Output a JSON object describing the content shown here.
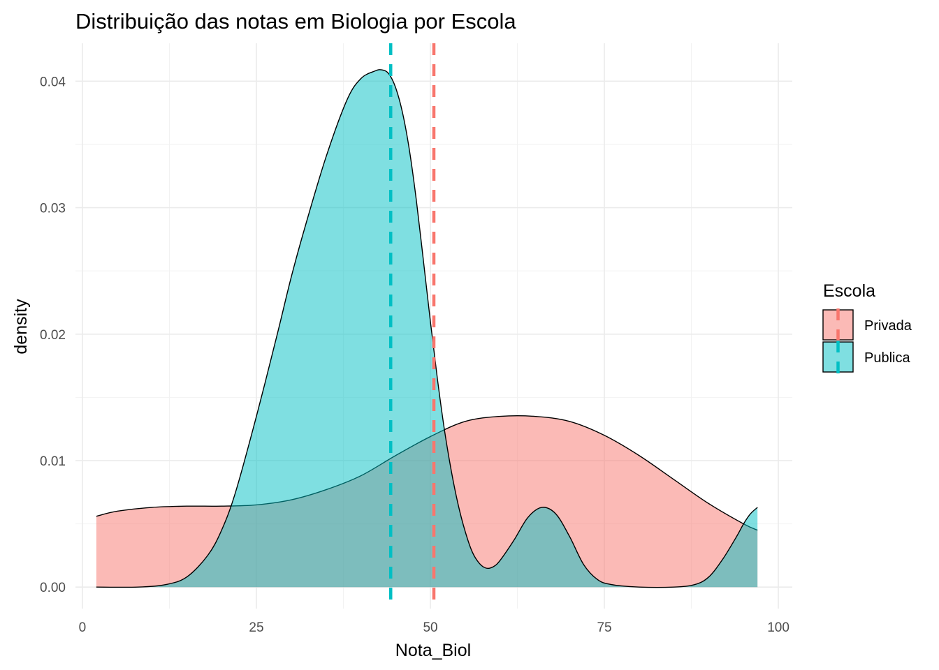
{
  "chart_data": {
    "type": "area",
    "title": "Distribuição das notas em Biologia por Escola",
    "xlabel": "Nota_Biol",
    "ylabel": "density",
    "xlim": [
      -1,
      102
    ],
    "ylim": [
      -0.0017,
      0.043
    ],
    "x_ticks": [
      0,
      25,
      50,
      75,
      100
    ],
    "x_tick_labels": [
      "0",
      "25",
      "50",
      "75",
      "100"
    ],
    "y_ticks": [
      0.0,
      0.01,
      0.02,
      0.03,
      0.04
    ],
    "y_tick_labels": [
      "0.00",
      "0.01",
      "0.02",
      "0.03",
      "0.04"
    ],
    "grid": true,
    "legend": {
      "title": "Escola",
      "position": "right"
    },
    "series": [
      {
        "name": "Privada",
        "color": "#F8766D",
        "mean": 50.5,
        "x": [
          2,
          5,
          10,
          15,
          20,
          25,
          30,
          35,
          40,
          45,
          50,
          55,
          60,
          65,
          70,
          75,
          80,
          85,
          90,
          95,
          97
        ],
        "y": [
          0.0056,
          0.006,
          0.0063,
          0.0064,
          0.0064,
          0.0065,
          0.0069,
          0.0077,
          0.0088,
          0.0104,
          0.0119,
          0.0131,
          0.0135,
          0.0135,
          0.0131,
          0.012,
          0.0104,
          0.0085,
          0.0066,
          0.005,
          0.0045
        ]
      },
      {
        "name": "Publica",
        "color": "#00BFC4",
        "mean": 44.3,
        "x": [
          2,
          8,
          12,
          15,
          18,
          20,
          22,
          25,
          28,
          30,
          32,
          35,
          38,
          40,
          42,
          43,
          44,
          45,
          46,
          47,
          48,
          49,
          50,
          51,
          52,
          53,
          54,
          55,
          56,
          57,
          58,
          59,
          60,
          62,
          64,
          66,
          68,
          70,
          72,
          74,
          76,
          80,
          85,
          88,
          90,
          92,
          94,
          95,
          96,
          97
        ],
        "y": [
          0.0,
          0.0,
          0.0002,
          0.0008,
          0.0025,
          0.0045,
          0.0075,
          0.0135,
          0.02,
          0.0245,
          0.0285,
          0.034,
          0.0385,
          0.0402,
          0.0408,
          0.0409,
          0.0406,
          0.0395,
          0.0375,
          0.0345,
          0.0305,
          0.0258,
          0.021,
          0.0165,
          0.0125,
          0.0092,
          0.0065,
          0.0044,
          0.0028,
          0.0019,
          0.0015,
          0.0016,
          0.0021,
          0.0037,
          0.0055,
          0.0063,
          0.0058,
          0.004,
          0.0018,
          0.0006,
          0.0002,
          0.0,
          0.0,
          0.0002,
          0.0008,
          0.0022,
          0.004,
          0.005,
          0.0058,
          0.0063
        ]
      }
    ]
  }
}
